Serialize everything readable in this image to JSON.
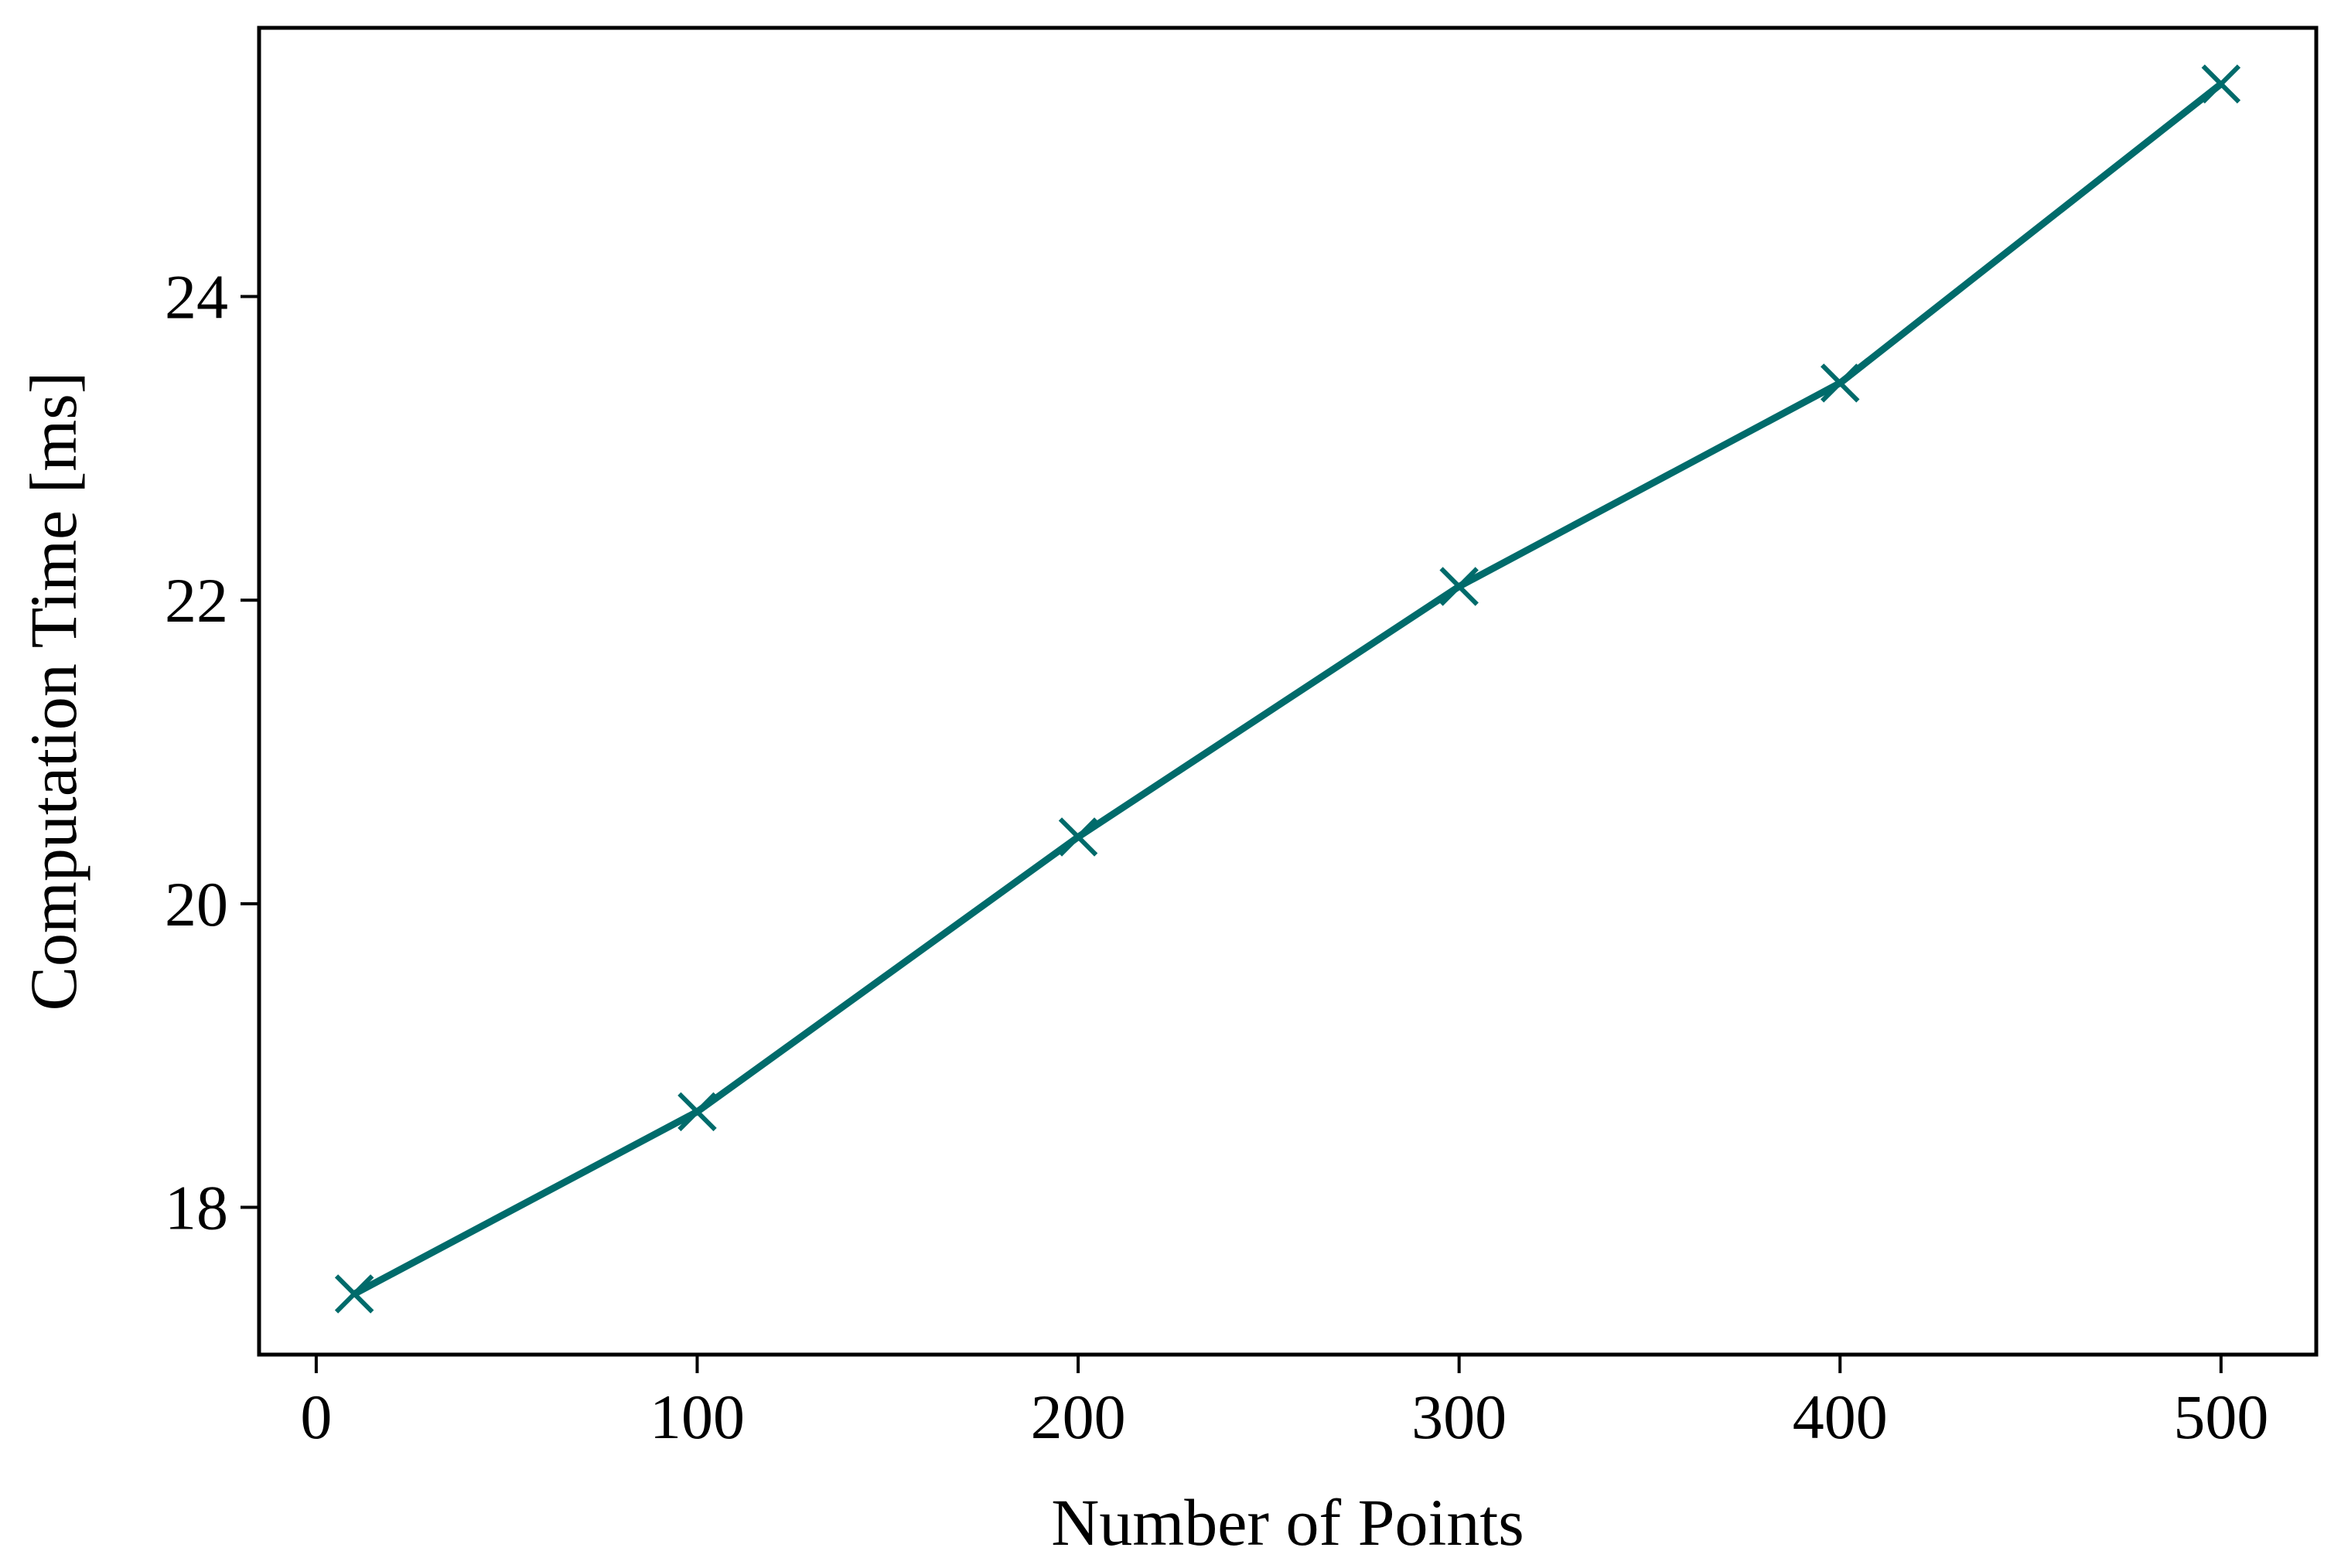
{
  "chart_data": {
    "type": "line",
    "title": "",
    "xlabel": "Number of Points",
    "ylabel": "Computation Time [ms]",
    "xlim": [
      -15,
      525
    ],
    "ylim": [
      17.03,
      25.77
    ],
    "x_ticks": [
      {
        "value": 0,
        "label": "0"
      },
      {
        "value": 100,
        "label": "100"
      },
      {
        "value": 200,
        "label": "200"
      },
      {
        "value": 300,
        "label": "300"
      },
      {
        "value": 400,
        "label": "400"
      },
      {
        "value": 500,
        "label": "500"
      }
    ],
    "y_ticks": [
      {
        "value": 18,
        "label": "18"
      },
      {
        "value": 20,
        "label": "20"
      },
      {
        "value": 22,
        "label": "22"
      },
      {
        "value": 24,
        "label": "24"
      }
    ],
    "grid": false,
    "legend": "none",
    "series": [
      {
        "color": "#006b6b",
        "marker": "x",
        "x": [
          10,
          100,
          200,
          300,
          400,
          500
        ],
        "y": [
          17.43,
          18.63,
          20.44,
          22.09,
          23.43,
          25.4
        ]
      }
    ]
  }
}
